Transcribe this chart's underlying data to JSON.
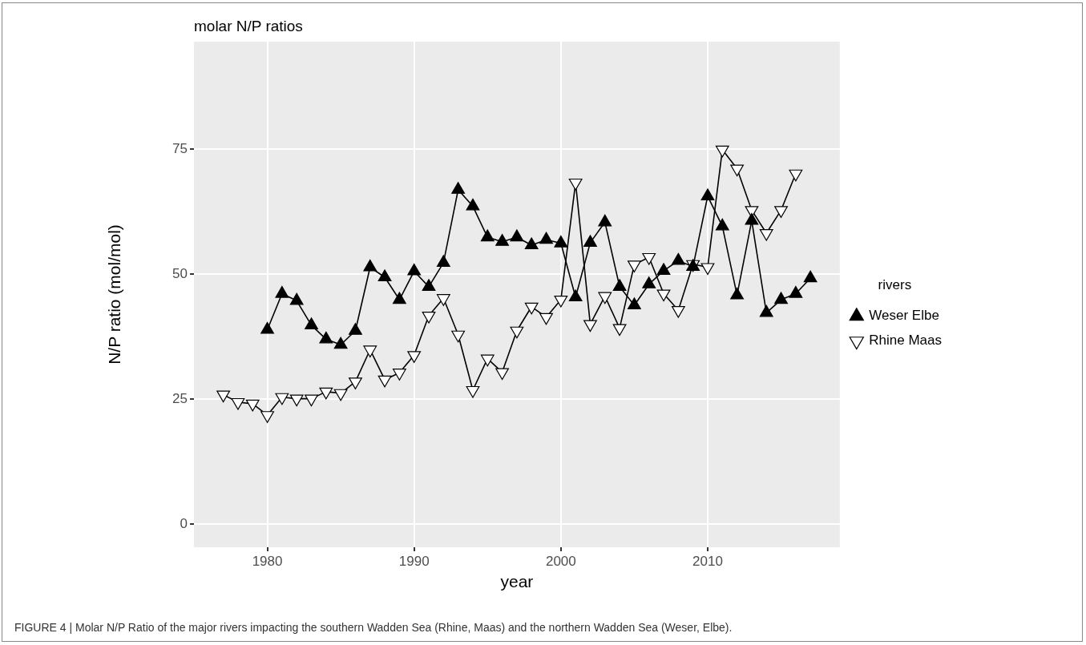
{
  "chart_data": {
    "type": "line",
    "title": "molar N/P ratios",
    "xlabel": "year",
    "ylabel": "N/P ratio (mol/mol)",
    "legend_title": "rivers",
    "legend": "right",
    "grid": true,
    "line_style": "solid",
    "x": [
      1977,
      1978,
      1979,
      1980,
      1981,
      1982,
      1983,
      1984,
      1985,
      1986,
      1987,
      1988,
      1989,
      1990,
      1991,
      1992,
      1993,
      1994,
      1995,
      1996,
      1997,
      1998,
      1999,
      2000,
      2001,
      2002,
      2003,
      2004,
      2005,
      2006,
      2007,
      2008,
      2009,
      2010,
      2011,
      2012,
      2013,
      2014,
      2015,
      2016,
      2017
    ],
    "xlim": [
      1975,
      2019
    ],
    "xticks": [
      1980,
      1990,
      2000,
      2010
    ],
    "ylim": [
      -4.6,
      96.5
    ],
    "yticks": [
      0,
      25,
      50,
      75
    ],
    "series": [
      {
        "name": "Weser Elbe",
        "color": "#000000",
        "marker": "triangle",
        "values": [
          null,
          null,
          null,
          38.9,
          46.1,
          44.7,
          39.8,
          37.0,
          35.9,
          38.7,
          51.4,
          49.4,
          44.9,
          50.6,
          47.5,
          52.3,
          66.9,
          63.6,
          57.4,
          56.5,
          57.4,
          55.8,
          56.9,
          56.2,
          45.4,
          56.3,
          60.4,
          47.5,
          43.8,
          48.0,
          50.7,
          52.7,
          51.5,
          65.6,
          59.6,
          45.8,
          60.7,
          42.3,
          44.9,
          46.1,
          49.2
        ]
      },
      {
        "name": "Rhine Maas",
        "color": "#000000",
        "marker": "triangle-down-open",
        "values": [
          25.9,
          24.4,
          24.1,
          21.8,
          25.4,
          25.1,
          25.1,
          26.5,
          26.2,
          28.5,
          34.9,
          28.9,
          30.3,
          33.8,
          41.7,
          45.2,
          37.9,
          26.8,
          33.1,
          30.4,
          38.7,
          43.5,
          41.4,
          44.9,
          68.3,
          40.0,
          45.6,
          39.2,
          51.9,
          53.4,
          46.1,
          42.8,
          52.0,
          51.4,
          74.9,
          71.1,
          62.8,
          58.2,
          62.8,
          70.1,
          null
        ]
      }
    ],
    "annotations": [
      "FIGURE 4 | Molar N/P Ratio of the major rivers impacting the southern Wadden Sea (Rhine, Maas) and the northern Wadden Sea (Weser, Elbe)."
    ]
  }
}
